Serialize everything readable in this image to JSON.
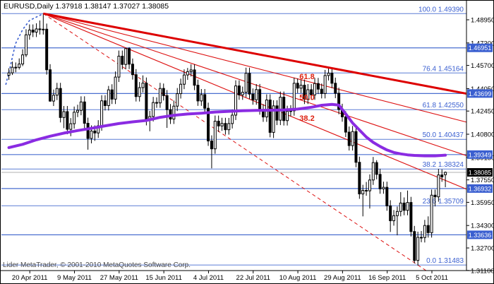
{
  "window": {
    "title": "EURUSD,Daily  1.37918 1.38147 1.37027 1.38085"
  },
  "watermark": "Lider MetaTrader, © 2001-2010 MetaQuotes Software Corp.",
  "colors": {
    "background": "#ffffff",
    "axis": "#000000",
    "candle_outline": "#000000",
    "candle_bull_fill": "#ffffff",
    "candle_bear_fill": "#000000",
    "fib_line": "#5b7dd6",
    "fib_text": "#3a5fd0",
    "hline": "#4a6fd0",
    "tag_bg": "#3a5fd0",
    "tag_text": "#ffffff",
    "current_tag_bg": "#000000",
    "current_line": "#b0b0b0",
    "ma_line": "#8a2be2",
    "fan_line": "#dd1111",
    "fan_text": "#dd2211",
    "sketch_line": "#3a5fd0",
    "watermark_text": "#4a4a4a",
    "trend_thick": "#dd0000"
  },
  "chart_data": {
    "type": "candlestick",
    "symbol": "EURUSD",
    "timeframe": "Daily",
    "last_bar": {
      "open": 1.37918,
      "high": 1.38147,
      "low": 1.37027,
      "close": 1.38085
    },
    "price_axis": {
      "top": 1.4895,
      "bottom": 1.311
    },
    "y_ticks": [
      "1.48950",
      "1.47300",
      "1.45700",
      "1.44050",
      "1.42450",
      "1.40800",
      "1.39150",
      "1.37550",
      "1.35950",
      "1.34300",
      "1.32700",
      "1.31100"
    ],
    "x_ticks": [
      {
        "bar": 3,
        "label": "20 Apr 2011"
      },
      {
        "bar": 16,
        "label": "9 May 2011"
      },
      {
        "bar": 29,
        "label": "27 May 2011"
      },
      {
        "bar": 42,
        "label": "15 Jun 2011"
      },
      {
        "bar": 55,
        "label": "4 Jul 2011"
      },
      {
        "bar": 68,
        "label": "22 Jul 2011"
      },
      {
        "bar": 81,
        "label": "10 Aug 2011"
      },
      {
        "bar": 94,
        "label": "29 Aug 2011"
      },
      {
        "bar": 107,
        "label": "16 Sep 2011"
      },
      {
        "bar": 120,
        "label": "5 Oct 2011"
      }
    ],
    "fib_retracement": {
      "levels": [
        {
          "pct": "100.0",
          "price": 1.4939,
          "label": "100.0 1.49390"
        },
        {
          "pct": "76.4",
          "price": 1.45164,
          "label": "76.4 1.45164"
        },
        {
          "pct": "61.8",
          "price": 1.4255,
          "label": "61.8 1.42550"
        },
        {
          "pct": "50.0",
          "price": 1.40437,
          "label": "50.0 1.40437"
        },
        {
          "pct": "38.2",
          "price": 1.38324,
          "label": "38.2 1.38324"
        },
        {
          "pct": "23.6",
          "price": 1.35709,
          "label": "23.6 1.35709"
        },
        {
          "pct": "0.0",
          "price": 1.31483,
          "label": "0.0 1.31483"
        }
      ]
    },
    "hlines": [
      {
        "price": 1.46951,
        "tag": "1.46951"
      },
      {
        "price": 1.43699,
        "tag": "1.43699"
      },
      {
        "price": 1.39349,
        "tag": "1.39349"
      },
      {
        "price": 1.36932,
        "tag": "1.36932"
      },
      {
        "price": 1.33636,
        "tag": "1.33636"
      }
    ],
    "current_price": {
      "price": 1.38085,
      "tag": "1.38085"
    },
    "fibo_fan": {
      "origin": {
        "bar": 10,
        "price": 1.4939
      },
      "base_end": {
        "bar": 119,
        "price": 1.31483
      },
      "levels": [
        {
          "r": 0.618,
          "label": "61.8"
        },
        {
          "r": 0.5,
          "label": "50.0"
        },
        {
          "r": 0.382,
          "label": "38.2"
        }
      ]
    },
    "trendline_thick": {
      "origin": {
        "bar": 10,
        "price": 1.4939
      },
      "right_edge_price": 1.4369
    },
    "sketch_curve_points": [
      [
        -0.9,
        1.4432
      ],
      [
        0.3,
        1.4553
      ],
      [
        1.9,
        1.4724
      ],
      [
        4.0,
        1.4825
      ],
      [
        6.0,
        1.489
      ],
      [
        10.0,
        1.4939
      ]
    ],
    "ma": {
      "name": "moving average",
      "points": [
        [
          0,
          1.3985
        ],
        [
          4,
          1.4008
        ],
        [
          8,
          1.404
        ],
        [
          12,
          1.4066
        ],
        [
          16,
          1.4088
        ],
        [
          20,
          1.4106
        ],
        [
          24,
          1.4122
        ],
        [
          28,
          1.414
        ],
        [
          32,
          1.4156
        ],
        [
          36,
          1.4168
        ],
        [
          40,
          1.4178
        ],
        [
          44,
          1.42
        ],
        [
          48,
          1.4215
        ],
        [
          52,
          1.4224
        ],
        [
          56,
          1.423
        ],
        [
          60,
          1.4238
        ],
        [
          64,
          1.4243
        ],
        [
          68,
          1.4247
        ],
        [
          72,
          1.425
        ],
        [
          76,
          1.4251
        ],
        [
          80,
          1.4253
        ],
        [
          84,
          1.4259
        ],
        [
          88,
          1.4272
        ],
        [
          91,
          1.4286
        ],
        [
          94,
          1.4293
        ],
        [
          96,
          1.4288
        ],
        [
          98,
          1.4225
        ],
        [
          100,
          1.416
        ],
        [
          102,
          1.411
        ],
        [
          104,
          1.406
        ],
        [
          106,
          1.4022
        ],
        [
          108,
          1.3993
        ],
        [
          110,
          1.3968
        ],
        [
          112,
          1.395
        ],
        [
          114,
          1.394
        ],
        [
          116,
          1.3933
        ],
        [
          118,
          1.3929
        ],
        [
          121,
          1.3926
        ],
        [
          124,
          1.3926
        ],
        [
          127,
          1.3931
        ]
      ]
    },
    "candles": [
      [
        1.45,
        1.455,
        1.4467,
        1.4517
      ],
      [
        1.4517,
        1.4597,
        1.4502,
        1.4557
      ],
      [
        1.4557,
        1.4591,
        1.4521,
        1.4556
      ],
      [
        1.4556,
        1.462,
        1.4541,
        1.458
      ],
      [
        1.458,
        1.4685,
        1.4565,
        1.4645
      ],
      [
        1.4645,
        1.4828,
        1.463,
        1.4788
      ],
      [
        1.4788,
        1.4862,
        1.4753,
        1.4822
      ],
      [
        1.4822,
        1.4862,
        1.4772,
        1.4807
      ],
      [
        1.4807,
        1.487,
        1.4772,
        1.483
      ],
      [
        1.483,
        1.489,
        1.479,
        1.4825
      ],
      [
        1.4825,
        1.4939,
        1.479,
        1.4828
      ],
      [
        1.4828,
        1.4868,
        1.4504,
        1.4539
      ],
      [
        1.4539,
        1.4579,
        1.4311,
        1.4316
      ],
      [
        1.4316,
        1.4398,
        1.4281,
        1.4358
      ],
      [
        1.4358,
        1.4446,
        1.4323,
        1.4406
      ],
      [
        1.4406,
        1.4446,
        1.4164,
        1.4199
      ],
      [
        1.4199,
        1.4281,
        1.4123,
        1.4241
      ],
      [
        1.4241,
        1.4281,
        1.408,
        1.4115
      ],
      [
        1.4115,
        1.4195,
        1.4066,
        1.4155
      ],
      [
        1.4155,
        1.4277,
        1.412,
        1.4237
      ],
      [
        1.4237,
        1.429,
        1.4202,
        1.425
      ],
      [
        1.425,
        1.435,
        1.4215,
        1.431
      ],
      [
        1.431,
        1.435,
        1.4123,
        1.4158
      ],
      [
        1.4158,
        1.4198,
        1.397,
        1.405
      ],
      [
        1.405,
        1.4143,
        1.4015,
        1.4103
      ],
      [
        1.4103,
        1.4143,
        1.4033,
        1.4089
      ],
      [
        1.4089,
        1.418,
        1.4054,
        1.414
      ],
      [
        1.414,
        1.4358,
        1.4105,
        1.4318
      ],
      [
        1.4318,
        1.4358,
        1.4249,
        1.4284
      ],
      [
        1.4284,
        1.4424,
        1.4249,
        1.4396
      ],
      [
        1.4396,
        1.4436,
        1.4295,
        1.433
      ],
      [
        1.433,
        1.4527,
        1.4295,
        1.4487
      ],
      [
        1.4487,
        1.4676,
        1.4452,
        1.4636
      ],
      [
        1.4636,
        1.4676,
        1.4542,
        1.4577
      ],
      [
        1.4577,
        1.4696,
        1.4542,
        1.469
      ],
      [
        1.469,
        1.47,
        1.4544,
        1.4579
      ],
      [
        1.4579,
        1.4619,
        1.4469,
        1.4504
      ],
      [
        1.4504,
        1.4544,
        1.4313,
        1.4348
      ],
      [
        1.4348,
        1.4452,
        1.4313,
        1.4412
      ],
      [
        1.4412,
        1.4499,
        1.4377,
        1.4444
      ],
      [
        1.4444,
        1.4484,
        1.4143,
        1.4178
      ],
      [
        1.4178,
        1.4246,
        1.4101,
        1.4206
      ],
      [
        1.4206,
        1.4346,
        1.4171,
        1.4306
      ],
      [
        1.4306,
        1.4343,
        1.4268,
        1.4303
      ],
      [
        1.4303,
        1.4446,
        1.4268,
        1.4406
      ],
      [
        1.4406,
        1.4441,
        1.432,
        1.4355
      ],
      [
        1.4355,
        1.4395,
        1.4125,
        1.4255
      ],
      [
        1.4255,
        1.4295,
        1.4153,
        1.4188
      ],
      [
        1.4188,
        1.432,
        1.4153,
        1.428
      ],
      [
        1.428,
        1.4409,
        1.4245,
        1.4369
      ],
      [
        1.4369,
        1.4476,
        1.4334,
        1.4436
      ],
      [
        1.4436,
        1.4542,
        1.4401,
        1.4502
      ],
      [
        1.4502,
        1.4552,
        1.4467,
        1.4526
      ],
      [
        1.4526,
        1.4578,
        1.4491,
        1.4538
      ],
      [
        1.4538,
        1.4578,
        1.4394,
        1.4429
      ],
      [
        1.4429,
        1.4469,
        1.4282,
        1.4317
      ],
      [
        1.4317,
        1.4402,
        1.4282,
        1.4362
      ],
      [
        1.4362,
        1.4402,
        1.423,
        1.4265
      ],
      [
        1.4265,
        1.4305,
        1.3997,
        1.4032
      ],
      [
        1.4032,
        1.4072,
        1.3837,
        1.3976
      ],
      [
        1.3976,
        1.4213,
        1.3941,
        1.4173
      ],
      [
        1.4173,
        1.4213,
        1.4096,
        1.4139
      ],
      [
        1.4139,
        1.4197,
        1.4104,
        1.4157
      ],
      [
        1.4157,
        1.4197,
        1.4077,
        1.4112
      ],
      [
        1.4112,
        1.4196,
        1.4077,
        1.4156
      ],
      [
        1.4156,
        1.4256,
        1.4121,
        1.4216
      ],
      [
        1.4216,
        1.4464,
        1.4181,
        1.4424
      ],
      [
        1.4424,
        1.4464,
        1.4325,
        1.436
      ],
      [
        1.436,
        1.4419,
        1.4325,
        1.4379
      ],
      [
        1.4379,
        1.4554,
        1.4344,
        1.4514
      ],
      [
        1.4514,
        1.4554,
        1.4331,
        1.4366
      ],
      [
        1.4366,
        1.4406,
        1.429,
        1.4325
      ],
      [
        1.4325,
        1.4437,
        1.429,
        1.4398
      ],
      [
        1.4398,
        1.4438,
        1.4219,
        1.4254
      ],
      [
        1.4254,
        1.4294,
        1.4168,
        1.4203
      ],
      [
        1.4203,
        1.4364,
        1.4168,
        1.4324
      ],
      [
        1.4324,
        1.4364,
        1.4058,
        1.4093
      ],
      [
        1.4093,
        1.4322,
        1.4053,
        1.4282
      ],
      [
        1.4282,
        1.4322,
        1.4145,
        1.418
      ],
      [
        1.418,
        1.4384,
        1.4145,
        1.4344
      ],
      [
        1.4344,
        1.4384,
        1.4142,
        1.4177
      ],
      [
        1.4177,
        1.4283,
        1.4142,
        1.4243
      ],
      [
        1.4243,
        1.4287,
        1.4208,
        1.4247
      ],
      [
        1.4247,
        1.4483,
        1.4212,
        1.4443
      ],
      [
        1.4443,
        1.4477,
        1.4373,
        1.4408
      ],
      [
        1.4408,
        1.4469,
        1.4373,
        1.4429
      ],
      [
        1.4429,
        1.4469,
        1.4295,
        1.433
      ],
      [
        1.433,
        1.4437,
        1.4295,
        1.4397
      ],
      [
        1.4397,
        1.4437,
        1.4325,
        1.436
      ],
      [
        1.436,
        1.4481,
        1.4325,
        1.4441
      ],
      [
        1.4441,
        1.4481,
        1.4366,
        1.4401
      ],
      [
        1.4401,
        1.4441,
        1.4335,
        1.437
      ],
      [
        1.437,
        1.4538,
        1.4335,
        1.4498
      ],
      [
        1.4498,
        1.455,
        1.4463,
        1.4515
      ],
      [
        1.4515,
        1.4555,
        1.4408,
        1.4443
      ],
      [
        1.4443,
        1.4483,
        1.4337,
        1.4372
      ],
      [
        1.4372,
        1.4412,
        1.4222,
        1.4257
      ],
      [
        1.4257,
        1.4297,
        1.4169,
        1.4204
      ],
      [
        1.4204,
        1.4244,
        1.406,
        1.4095
      ],
      [
        1.4095,
        1.4135,
        1.3964,
        1.3999
      ],
      [
        1.3999,
        1.4139,
        1.3964,
        1.4099
      ],
      [
        1.4099,
        1.4139,
        1.3845,
        1.388
      ],
      [
        1.388,
        1.392,
        1.362,
        1.3655
      ],
      [
        1.3655,
        1.372,
        1.3495,
        1.368
      ],
      [
        1.368,
        1.374,
        1.3642,
        1.3677
      ],
      [
        1.3677,
        1.3794,
        1.3551,
        1.3754
      ],
      [
        1.3754,
        1.3918,
        1.3719,
        1.3878
      ],
      [
        1.3878,
        1.3895,
        1.3759,
        1.3794
      ],
      [
        1.3794,
        1.3834,
        1.3656,
        1.3691
      ],
      [
        1.3691,
        1.3742,
        1.3656,
        1.3702
      ],
      [
        1.3702,
        1.3742,
        1.3535,
        1.357
      ],
      [
        1.357,
        1.361,
        1.3384,
        1.3464
      ],
      [
        1.3464,
        1.354,
        1.3429,
        1.35
      ],
      [
        1.35,
        1.3565,
        1.336,
        1.353
      ],
      [
        1.353,
        1.3668,
        1.3495,
        1.359
      ],
      [
        1.359,
        1.363,
        1.3503,
        1.3538
      ],
      [
        1.3538,
        1.3679,
        1.3503,
        1.3594
      ],
      [
        1.3594,
        1.3634,
        1.3352,
        1.3387
      ],
      [
        1.3387,
        1.3427,
        1.3161,
        1.3181
      ],
      [
        1.3181,
        1.3386,
        1.3145,
        1.3346
      ],
      [
        1.3346,
        1.3391,
        1.3311,
        1.3344
      ],
      [
        1.3344,
        1.347,
        1.3309,
        1.343
      ],
      [
        1.343,
        1.3495,
        1.3344,
        1.3379
      ],
      [
        1.3379,
        1.3686,
        1.3344,
        1.3646
      ],
      [
        1.3646,
        1.3686,
        1.3566,
        1.3634
      ],
      [
        1.3634,
        1.3833,
        1.3599,
        1.379
      ],
      [
        1.379,
        1.383,
        1.3741,
        1.3776
      ],
      [
        1.37918,
        1.38147,
        1.37027,
        1.38085
      ]
    ]
  }
}
